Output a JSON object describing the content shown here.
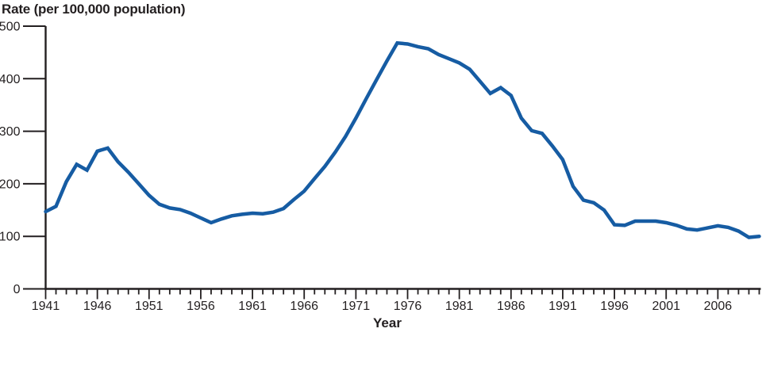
{
  "chart_data": {
    "type": "line",
    "title": "",
    "ylabel": "Rate (per 100,000 population)",
    "xlabel": "Year",
    "x_range": [
      1941,
      2010
    ],
    "ylim": [
      0,
      500
    ],
    "y_ticks": [
      0,
      100,
      200,
      300,
      400,
      500
    ],
    "x_major_ticks": [
      1941,
      1946,
      1951,
      1956,
      1961,
      1966,
      1971,
      1976,
      1981,
      1986,
      1991,
      1996,
      2001,
      2006
    ],
    "x_minor_tick_interval": 1,
    "grid": false,
    "legend": "none",
    "colors": {
      "line": "#165CA3",
      "axis": "#231F20",
      "text": "#231F20",
      "background": "#FFFFFF"
    },
    "series": [
      {
        "name": "rate-per-100000",
        "x": [
          1941,
          1942,
          1943,
          1944,
          1945,
          1946,
          1947,
          1948,
          1949,
          1950,
          1951,
          1952,
          1953,
          1954,
          1955,
          1956,
          1957,
          1958,
          1959,
          1960,
          1961,
          1962,
          1963,
          1964,
          1965,
          1966,
          1967,
          1968,
          1969,
          1970,
          1971,
          1972,
          1973,
          1974,
          1975,
          1976,
          1977,
          1978,
          1979,
          1980,
          1981,
          1982,
          1983,
          1984,
          1985,
          1986,
          1987,
          1988,
          1989,
          1990,
          1991,
          1992,
          1993,
          1994,
          1995,
          1996,
          1997,
          1998,
          1999,
          2000,
          2001,
          2002,
          2003,
          2004,
          2005,
          2006,
          2007,
          2008,
          2009,
          2010
        ],
        "values": [
          147,
          157,
          204,
          237,
          226,
          262,
          268,
          242,
          222,
          200,
          178,
          161,
          154,
          151,
          144,
          135,
          126,
          133,
          139,
          142,
          144,
          143,
          146,
          153,
          170,
          186,
          210,
          233,
          260,
          290,
          325,
          362,
          398,
          434,
          468,
          466,
          461,
          457,
          446,
          438,
          430,
          418,
          395,
          372,
          383,
          368,
          325,
          301,
          296,
          272,
          246,
          195,
          169,
          164,
          150,
          122,
          121,
          129,
          129,
          129,
          126,
          121,
          114,
          112,
          116,
          120,
          117,
          110,
          98,
          100
        ]
      }
    ]
  }
}
